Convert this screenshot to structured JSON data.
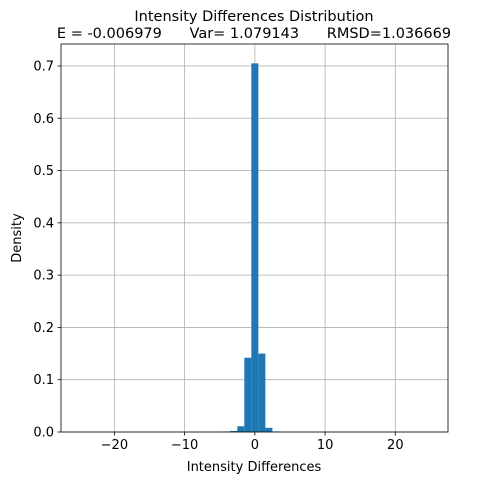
{
  "chart_data": {
    "type": "histogram",
    "title": "Intensity Differences Distribution",
    "subtitle": "E = -0.006979      Var= 1.079143      RMSD=1.036669",
    "x_label": "Intensity Differences",
    "y_label": "Density",
    "bins": [
      -25.5,
      -24.5,
      -23.5,
      -22.5,
      -21.5,
      -20.5,
      -19.5,
      -18.5,
      -17.5,
      -16.5,
      -15.5,
      -14.5,
      -13.5,
      -12.5,
      -11.5,
      -10.5,
      -9.5,
      -8.5,
      -7.5,
      -6.5,
      -5.5,
      -4.5,
      -3.5,
      -2.5,
      -1.5,
      -0.5,
      0.5,
      1.5,
      2.5,
      3.5,
      4.5,
      5.5,
      6.5,
      7.5,
      8.5,
      9.5,
      10.5,
      11.5,
      12.5,
      13.5,
      14.5,
      15.5,
      16.5,
      17.5,
      18.5,
      19.5,
      20.5,
      21.5,
      22.5,
      23.5,
      24.5,
      25.5
    ],
    "values": [
      0,
      0,
      0,
      0,
      0,
      0,
      0,
      0,
      0,
      0,
      0,
      0,
      0,
      0,
      0,
      0,
      0,
      0,
      0,
      0,
      0,
      0.001,
      0.002,
      0.011,
      0.142,
      0.705,
      0.15,
      0.008,
      0.001,
      0,
      0,
      0,
      0,
      0,
      0,
      0,
      0,
      0,
      0,
      0,
      0,
      0,
      0,
      0,
      0,
      0,
      0,
      0,
      0,
      0,
      0
    ],
    "color": "#1f77b4",
    "xlim": [
      -27.6,
      27.5
    ],
    "ylim": [
      0,
      0.742
    ],
    "xticks": [
      {
        "value": -20,
        "label": "−20"
      },
      {
        "value": -10,
        "label": "−10"
      },
      0,
      10,
      20
    ],
    "yticks": [
      {
        "value": 0,
        "label": "0.0"
      },
      0.1,
      0.2,
      0.3,
      0.4,
      0.5,
      0.6,
      0.7
    ],
    "grid": true
  }
}
